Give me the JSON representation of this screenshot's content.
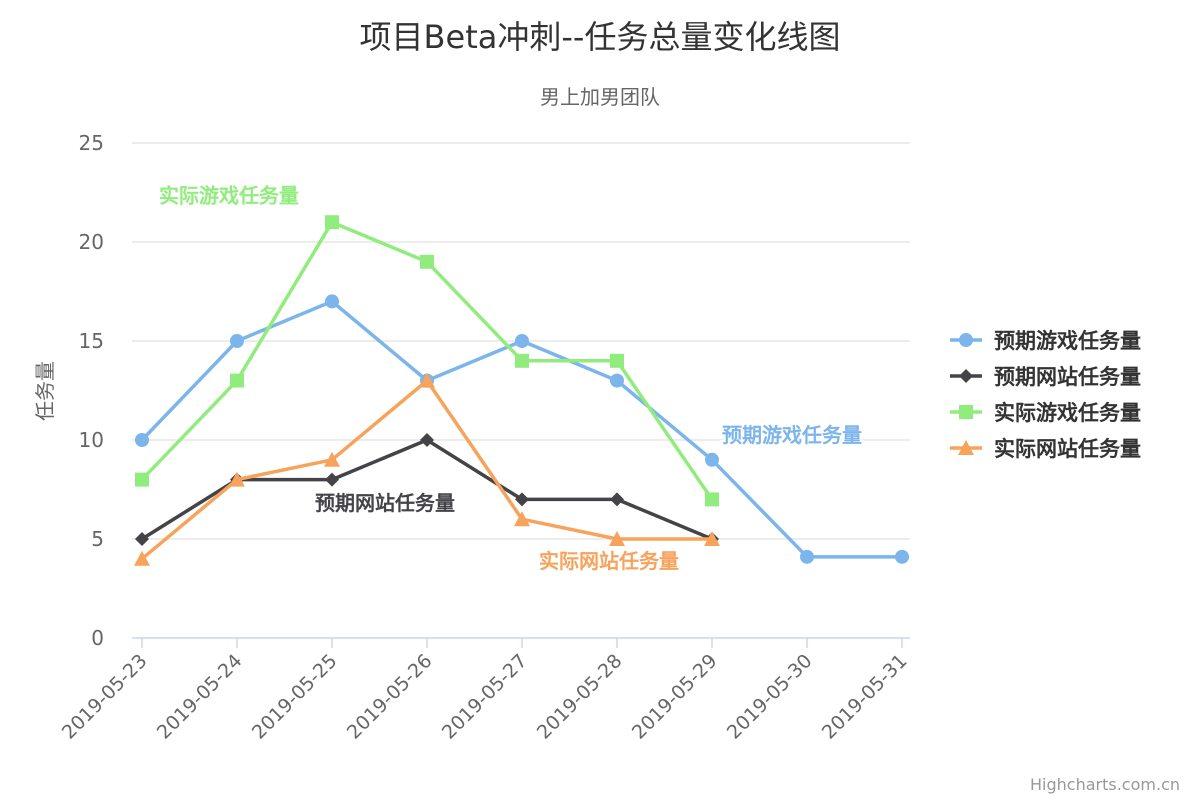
{
  "chart_data": {
    "type": "line",
    "title": "项目Beta冲刺--任务总量变化线图",
    "subtitle": "男上加男团队",
    "xlabel": "",
    "ylabel": "任务量",
    "ylim": [
      0,
      25
    ],
    "yticks": [
      0,
      5,
      10,
      15,
      20,
      25
    ],
    "grid": true,
    "legend_position": "right",
    "categories": [
      "2019-05-23",
      "2019-05-24",
      "2019-05-25",
      "2019-05-26",
      "2019-05-27",
      "2019-05-28",
      "2019-05-29",
      "2019-05-30",
      "2019-05-31"
    ],
    "series": [
      {
        "name": "预期游戏任务量",
        "color": "#7cb5ec",
        "marker": "circle",
        "values": [
          10,
          15,
          17,
          13,
          15,
          13,
          9,
          4.1,
          4.1
        ],
        "annotation": "预期游戏任务量"
      },
      {
        "name": "预期网站任务量",
        "color": "#434348",
        "marker": "diamond",
        "values": [
          5,
          8,
          8,
          10,
          7,
          7,
          5,
          null,
          null
        ],
        "annotation": "预期网站任务量"
      },
      {
        "name": "实际游戏任务量",
        "color": "#90ed7d",
        "marker": "square",
        "values": [
          8,
          13,
          21,
          19,
          14,
          14,
          7,
          null,
          null
        ],
        "annotation": "实际游戏任务量"
      },
      {
        "name": "实际网站任务量",
        "color": "#f7a35c",
        "marker": "triangle",
        "values": [
          4,
          8,
          9,
          13,
          6,
          5,
          5,
          null,
          null
        ],
        "annotation": "实际网站任务量"
      }
    ]
  },
  "credits": "Highcharts.com.cn"
}
